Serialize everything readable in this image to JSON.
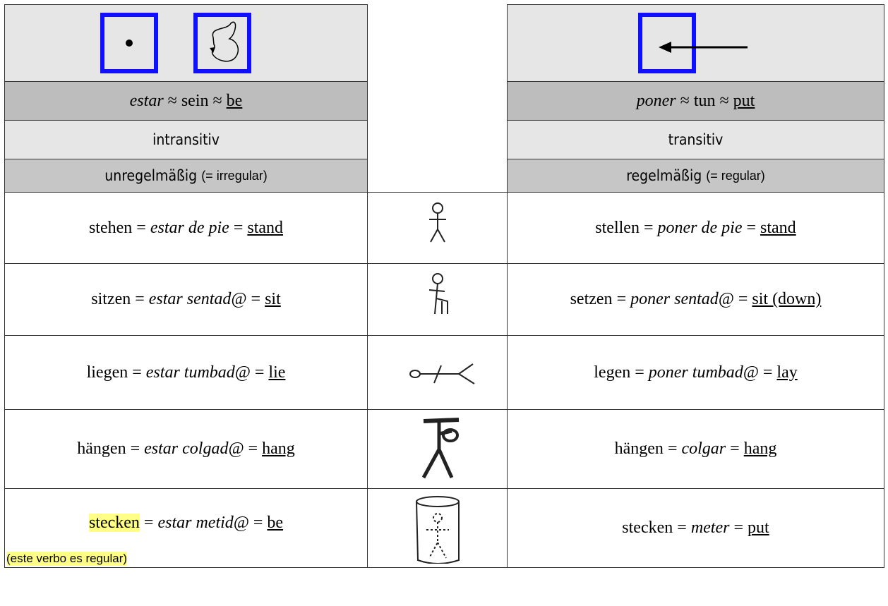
{
  "symbols": {
    "approx": "≈",
    "equals": "="
  },
  "header": {
    "left": {
      "verb": "estar",
      "german": "sein",
      "english": "be",
      "type": "intransitiv",
      "regularity": "unregelmäßig",
      "regularity_note": "(= irregular)"
    },
    "right": {
      "verb": "poner",
      "german": "tun",
      "english": "put",
      "type": "transitiv",
      "regularity": "regelmäßig",
      "regularity_note": "(= regular)"
    }
  },
  "rows": [
    {
      "left": {
        "german": "stehen",
        "spanish": "estar de pie",
        "english": "stand"
      },
      "right": {
        "german": "stellen",
        "spanish": "poner de pie",
        "english": "stand"
      }
    },
    {
      "left": {
        "german": "sitzen",
        "spanish": "estar sentad@",
        "english": "sit"
      },
      "right": {
        "german": "setzen",
        "spanish": "poner sentad@",
        "english": "sit (down)"
      }
    },
    {
      "left": {
        "german": "liegen",
        "spanish": "estar tumbad@",
        "english": "lie"
      },
      "right": {
        "german": "legen",
        "spanish": "poner tumbad@",
        "english": "lay"
      }
    },
    {
      "left": {
        "german": "hängen",
        "spanish": "estar colgad@",
        "english": "hang"
      },
      "right": {
        "german": "hängen",
        "spanish": "colgar",
        "english": "hang"
      }
    },
    {
      "left": {
        "german": "stecken",
        "spanish": "estar metid@",
        "english": "be",
        "note": "(este verbo es regular)"
      },
      "right": {
        "german": "stecken",
        "spanish": "meter",
        "english": "put"
      }
    }
  ]
}
